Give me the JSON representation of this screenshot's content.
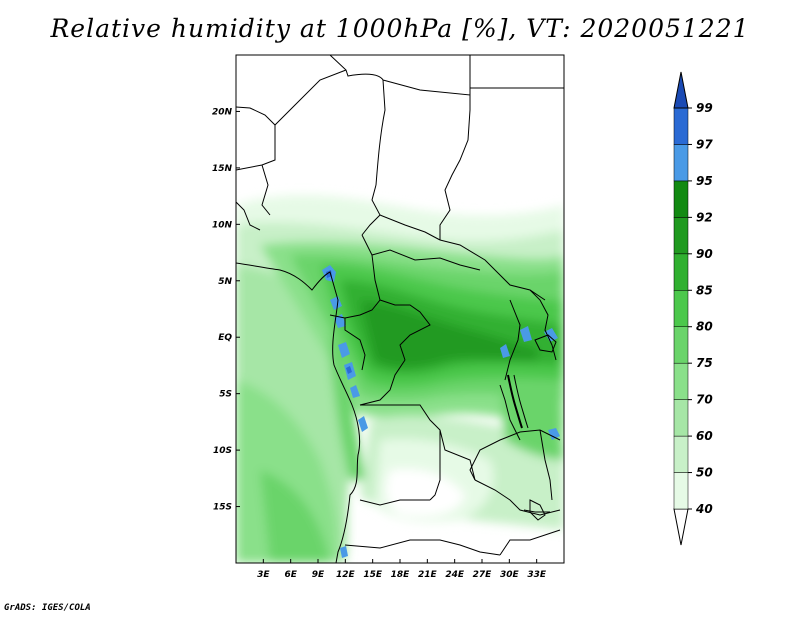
{
  "title": "Relative humidity at 1000hPa [%], VT: 2020051221",
  "credit": "GrADS: IGES/COLA",
  "map": {
    "lon_range": [
      0,
      36
    ],
    "lat_range": [
      -20,
      25
    ],
    "lon_ticks": [
      "3E",
      "6E",
      "9E",
      "12E",
      "15E",
      "18E",
      "21E",
      "24E",
      "27E",
      "30E",
      "33E"
    ],
    "lon_values": [
      3,
      6,
      9,
      12,
      15,
      18,
      21,
      24,
      27,
      30,
      33
    ],
    "lat_ticks": [
      "20N",
      "15N",
      "10N",
      "5N",
      "EQ",
      "5S",
      "10S",
      "15S"
    ],
    "lat_values": [
      20,
      15,
      10,
      5,
      0,
      -5,
      -10,
      -15
    ]
  },
  "colorbar": {
    "levels": [
      "40",
      "50",
      "60",
      "70",
      "75",
      "80",
      "85",
      "90",
      "92",
      "95",
      "97",
      "99"
    ],
    "colors": [
      "#ffffff",
      "#e6fae6",
      "#c8f0c8",
      "#a6e6a6",
      "#8ae08a",
      "#6ad46a",
      "#4cc84c",
      "#30b030",
      "#209a20",
      "#128a12",
      "#4a9ae6",
      "#2a6ad4",
      "#1a4ab4"
    ]
  },
  "colors": {
    "border": "#000000",
    "background": "#ffffff"
  }
}
